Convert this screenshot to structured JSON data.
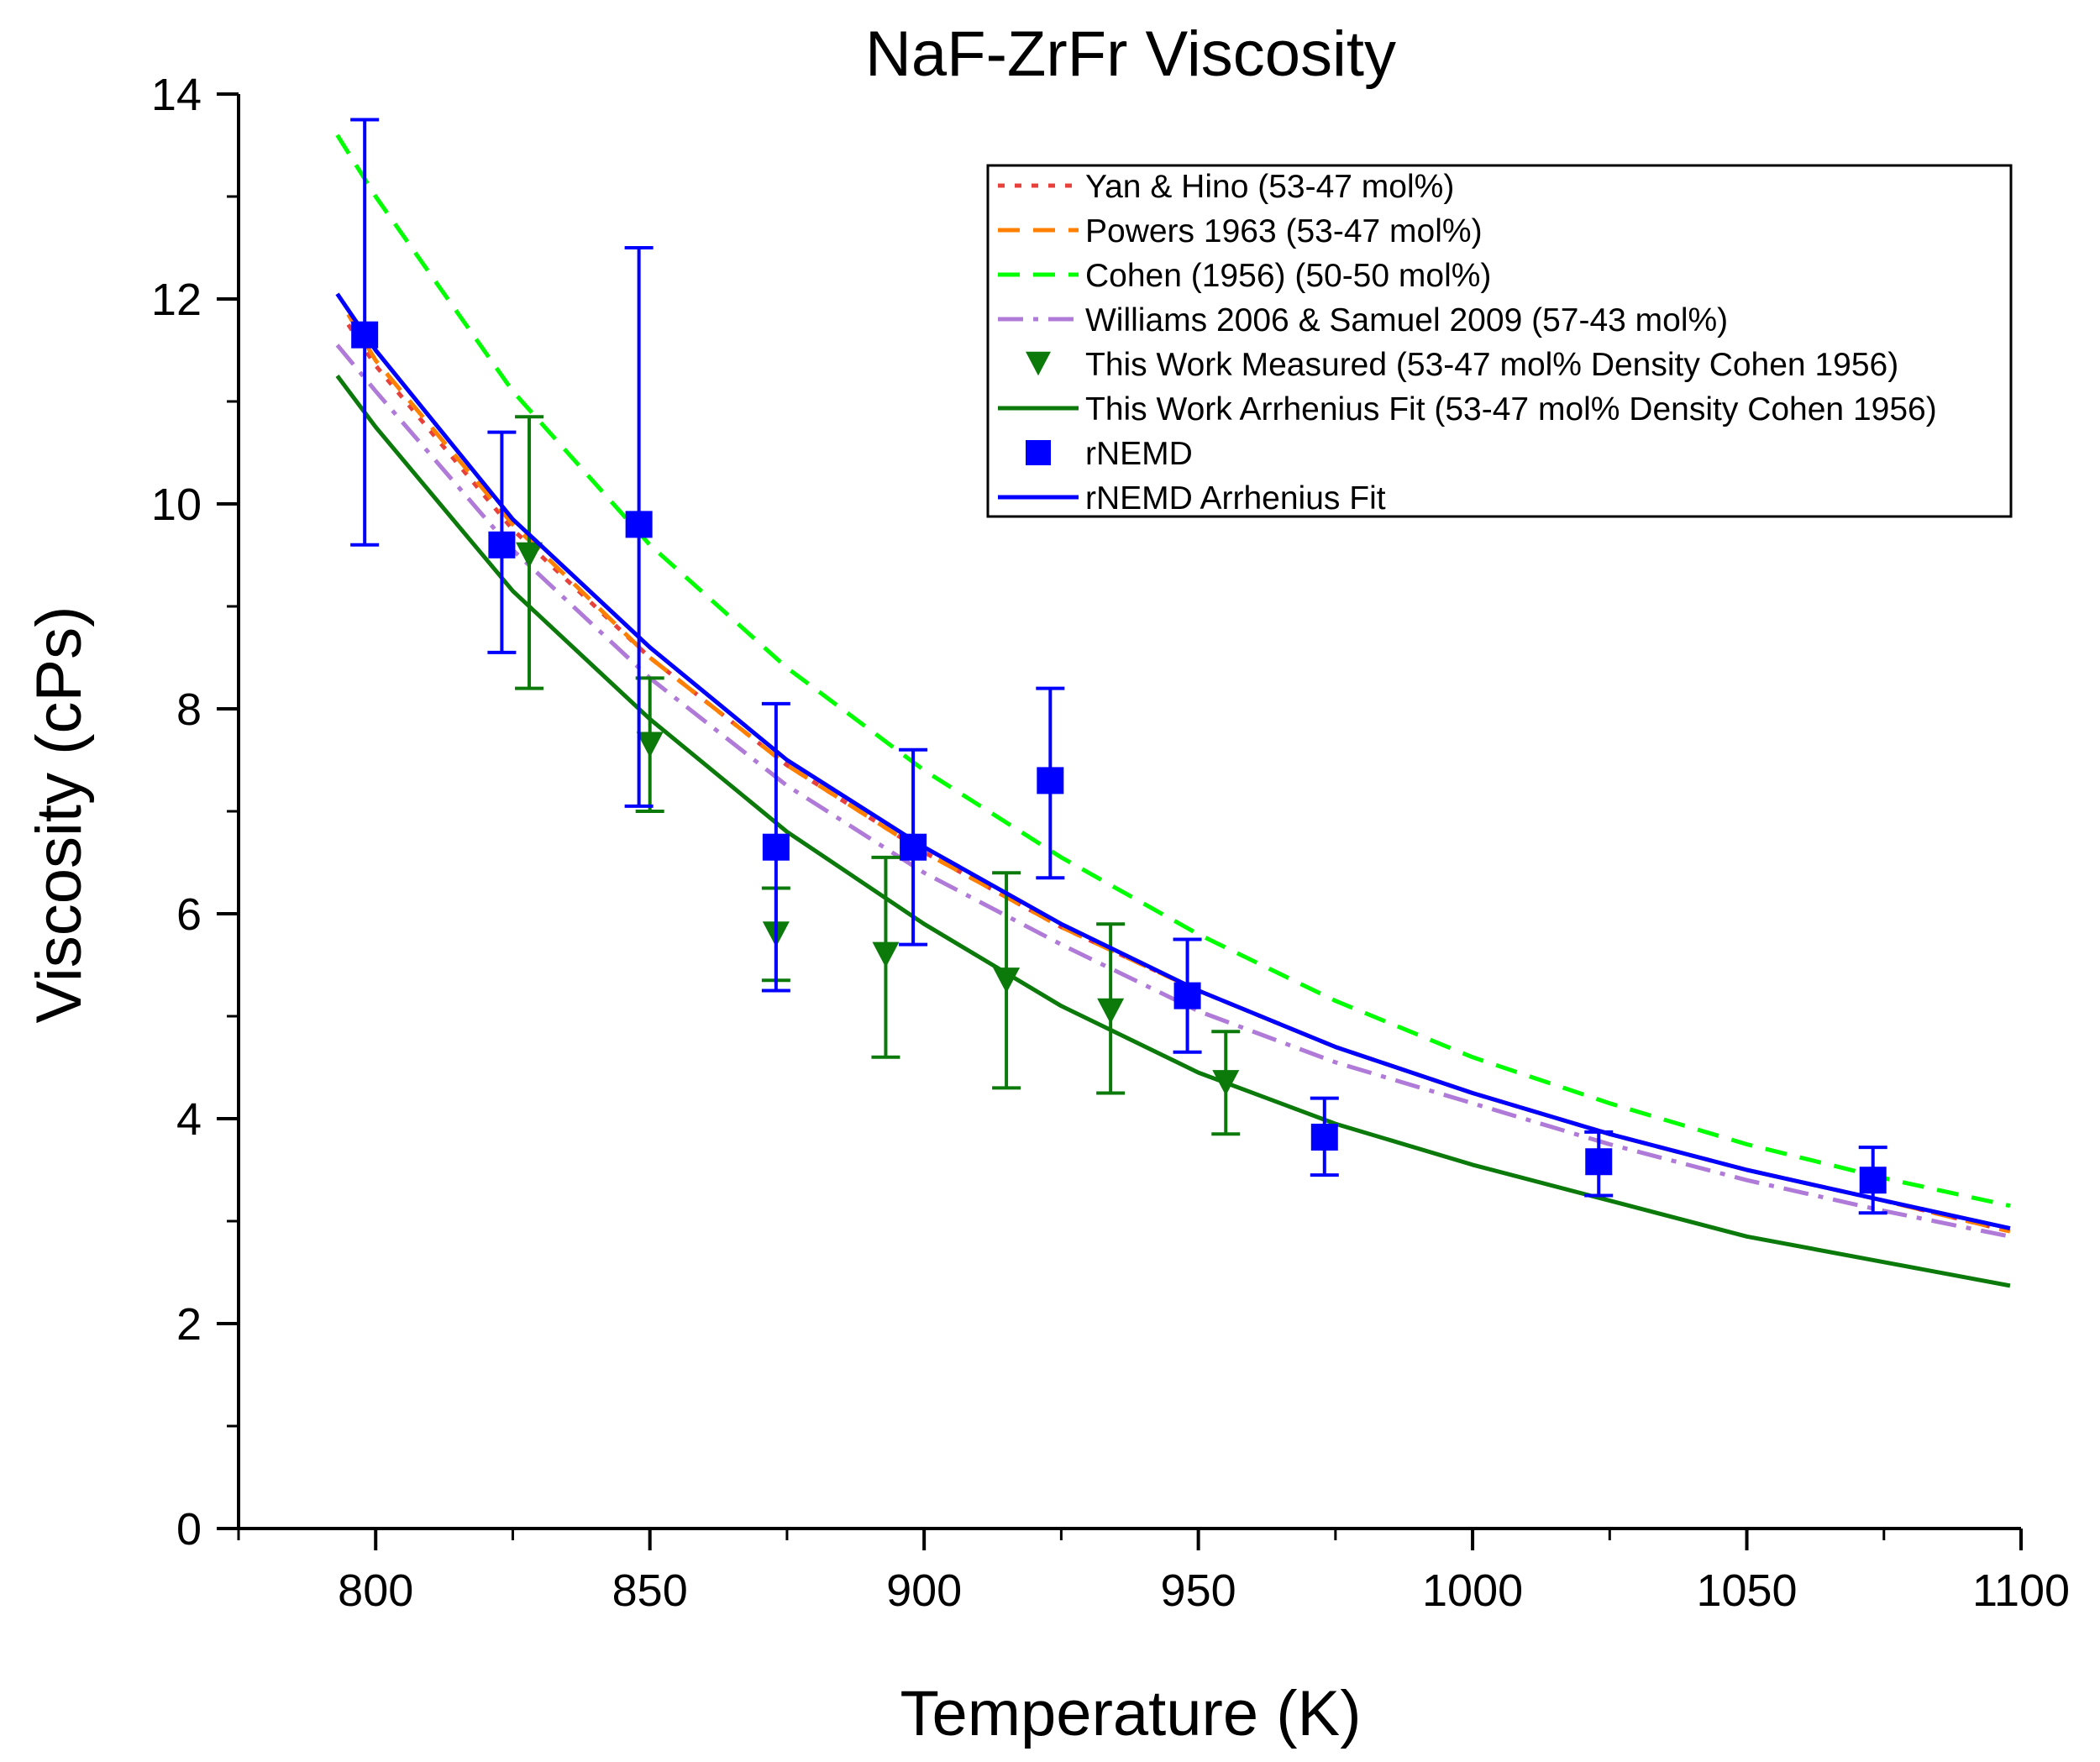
{
  "chart_data": {
    "type": "scatter",
    "title": "NaF-ZrFr Viscosity",
    "xlabel": "Temperature (K)",
    "ylabel": "Viscosity (cPs)",
    "xlim": [
      775,
      1100
    ],
    "ylim": [
      0,
      14
    ],
    "xticks": [
      800,
      850,
      900,
      950,
      1000,
      1050,
      1100
    ],
    "xtick_labels": [
      "800",
      "850",
      "900",
      "950",
      "1000",
      "1050",
      "1100"
    ],
    "yticks": [
      0,
      2,
      4,
      6,
      8,
      10,
      12,
      14
    ],
    "ytick_labels": [
      "0",
      "2",
      "4",
      "6",
      "8",
      "10",
      "12",
      "14"
    ],
    "grid": false,
    "legend_position": "top-right",
    "series": [
      {
        "name": "Yan & Hino (53-47 mol%)",
        "kind": "line",
        "color": "#e8413b",
        "dash": "dotted",
        "x": [
          795,
          800,
          825,
          850,
          875,
          900,
          925,
          950,
          975,
          1000,
          1025,
          1050,
          1075,
          1098
        ],
        "y": [
          11.75,
          11.35,
          9.75,
          8.5,
          7.45,
          6.6,
          5.87,
          5.25,
          4.7,
          4.25,
          3.85,
          3.5,
          3.2,
          2.9
        ]
      },
      {
        "name": "Powers 1963 (53-47 mol%)",
        "kind": "line",
        "color": "#ff8000",
        "dash": "dashed",
        "x": [
          795,
          800,
          825,
          850,
          875,
          900,
          925,
          950,
          975,
          1000,
          1025,
          1050,
          1075,
          1098
        ],
        "y": [
          11.85,
          11.4,
          9.8,
          8.5,
          7.45,
          6.6,
          5.87,
          5.25,
          4.7,
          4.25,
          3.85,
          3.5,
          3.2,
          2.9
        ]
      },
      {
        "name": "Cohen (1956) (50-50 mol%)",
        "kind": "line",
        "color": "#00ff00",
        "dash": "dashed",
        "x": [
          793,
          800,
          825,
          850,
          875,
          900,
          925,
          950,
          975,
          1000,
          1025,
          1050,
          1075,
          1098
        ],
        "y": [
          13.6,
          13.0,
          11.1,
          9.6,
          8.4,
          7.4,
          6.55,
          5.8,
          5.15,
          4.6,
          4.15,
          3.75,
          3.42,
          3.15
        ]
      },
      {
        "name": "Williams 2006 & Samuel 2009 (57-43 mol%)",
        "kind": "line",
        "color": "#b07ad8",
        "dash": "dashdot",
        "x": [
          793,
          800,
          825,
          850,
          875,
          900,
          925,
          950,
          975,
          1000,
          1025,
          1050,
          1075,
          1098
        ],
        "y": [
          11.55,
          11.1,
          9.55,
          8.3,
          7.25,
          6.4,
          5.7,
          5.05,
          4.55,
          4.15,
          3.75,
          3.4,
          3.1,
          2.85
        ]
      },
      {
        "name": "This Work Measured (53-47 mol% Density Cohen 1956)",
        "kind": "points",
        "marker": "triangle-down",
        "color": "#0b7a0b",
        "x": [
          828,
          850,
          873,
          893,
          915,
          934,
          955
        ],
        "y": [
          9.5,
          7.65,
          5.8,
          5.6,
          5.35,
          5.05,
          4.35
        ],
        "yerr_low": [
          8.2,
          7.0,
          5.35,
          4.6,
          4.3,
          4.25,
          3.85
        ],
        "yerr_high": [
          10.85,
          8.3,
          6.25,
          6.55,
          6.4,
          5.9,
          4.85
        ]
      },
      {
        "name": "This Work Arrhenius Fit (53-47 mol% Density Cohen 1956)",
        "kind": "line",
        "color": "#0b7a0b",
        "dash": "solid",
        "x": [
          793,
          800,
          825,
          850,
          875,
          900,
          925,
          950,
          975,
          1000,
          1025,
          1050,
          1075,
          1098
        ],
        "y": [
          11.25,
          10.75,
          9.15,
          7.9,
          6.8,
          5.9,
          5.1,
          4.45,
          3.95,
          3.55,
          3.2,
          2.85,
          2.6,
          2.37
        ]
      },
      {
        "name": "rNEMD",
        "kind": "points",
        "marker": "square",
        "color": "#0000ff",
        "x": [
          798,
          823,
          848,
          873,
          898,
          923,
          948,
          973,
          1023,
          1073
        ],
        "y": [
          11.65,
          9.6,
          9.8,
          6.65,
          6.65,
          7.3,
          5.2,
          3.82,
          3.58,
          3.4
        ],
        "yerr_low": [
          9.6,
          8.55,
          7.05,
          5.25,
          5.7,
          6.35,
          4.65,
          3.45,
          3.25,
          3.08
        ],
        "yerr_high": [
          13.75,
          10.7,
          12.5,
          8.05,
          7.6,
          8.2,
          5.75,
          4.2,
          3.87,
          3.72
        ]
      },
      {
        "name": "rNEMD Arrhenius Fit",
        "kind": "line",
        "color": "#0000ff",
        "dash": "solid",
        "x": [
          793,
          800,
          825,
          850,
          875,
          900,
          925,
          950,
          975,
          1000,
          1025,
          1050,
          1075,
          1098
        ],
        "y": [
          12.05,
          11.5,
          9.85,
          8.6,
          7.5,
          6.65,
          5.9,
          5.25,
          4.7,
          4.25,
          3.85,
          3.5,
          3.2,
          2.93
        ]
      }
    ]
  }
}
